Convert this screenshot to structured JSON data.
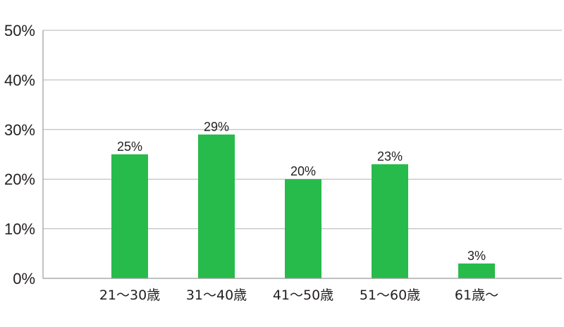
{
  "chart_data": {
    "type": "bar",
    "categories": [
      "21〜30歳",
      "31〜40歳",
      "41〜50歳",
      "51〜60歳",
      "61歳〜"
    ],
    "values": [
      25,
      29,
      20,
      23,
      3
    ],
    "data_labels": [
      "25%",
      "29%",
      "20%",
      "23%",
      "3%"
    ],
    "y_ticks": [
      0,
      10,
      20,
      30,
      40,
      50
    ],
    "y_tick_labels": [
      "0%",
      "10%",
      "20%",
      "30%",
      "40%",
      "50%"
    ],
    "ylim": [
      0,
      50
    ],
    "grid": true,
    "legend": "none",
    "bar_color": "#27bb4b",
    "grid_color": "#b3b3b3",
    "axis_color": "#9a9a9a"
  }
}
